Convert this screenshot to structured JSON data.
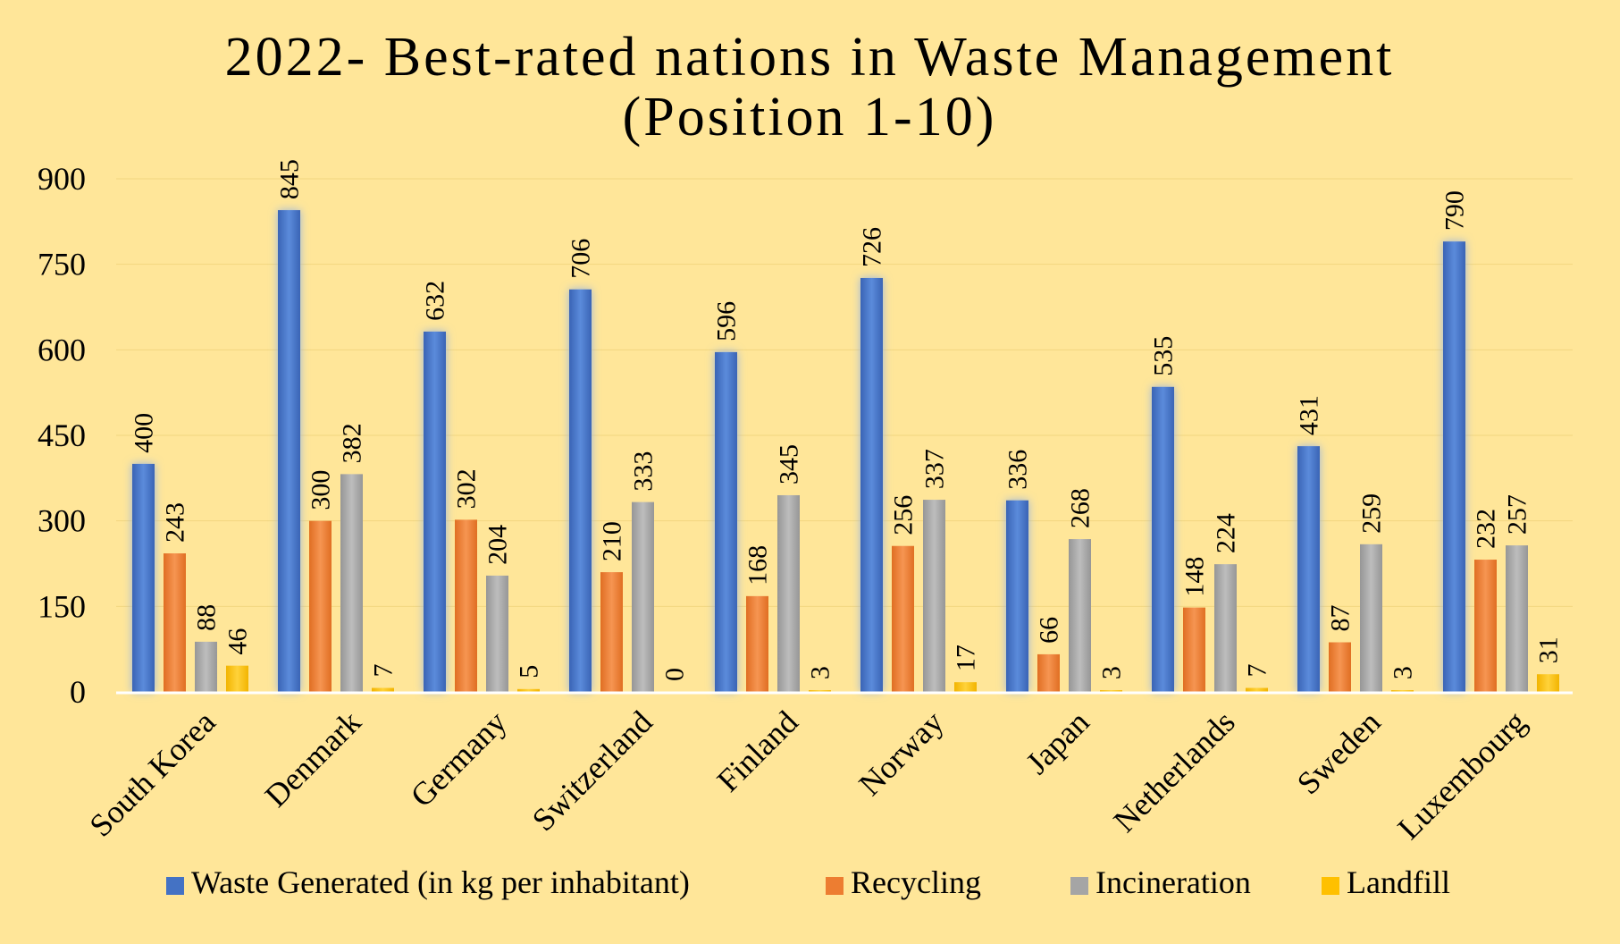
{
  "chart_data": {
    "type": "bar",
    "title": "2022- Best-rated nations in Waste Management",
    "subtitle": "(Position 1-10)",
    "xlabel": "",
    "ylabel": "",
    "ylim": [
      0,
      900
    ],
    "yticks": [
      0,
      150,
      300,
      450,
      600,
      750,
      900
    ],
    "grid": true,
    "legend_position": "bottom",
    "categories": [
      "South Korea",
      "Denmark",
      "Germany",
      "Switzerland",
      "Finland",
      "Norway",
      "Japan",
      "Netherlands",
      "Sweden",
      "Luxembourg"
    ],
    "series": [
      {
        "name": "Waste Generated (in kg per inhabitant)",
        "color": "#4472C4",
        "values": [
          400,
          845,
          632,
          706,
          596,
          726,
          336,
          535,
          431,
          790
        ]
      },
      {
        "name": "Recycling",
        "color": "#ED7D31",
        "values": [
          243,
          300,
          302,
          210,
          168,
          256,
          66,
          148,
          87,
          232
        ]
      },
      {
        "name": "Incineration",
        "color": "#A5A5A5",
        "values": [
          88,
          382,
          204,
          333,
          345,
          337,
          268,
          224,
          259,
          257
        ]
      },
      {
        "name": "Landfill",
        "color": "#FFC000",
        "values": [
          46,
          7,
          5,
          0,
          3,
          17,
          3,
          7,
          3,
          31
        ]
      }
    ],
    "data_labels": true
  }
}
